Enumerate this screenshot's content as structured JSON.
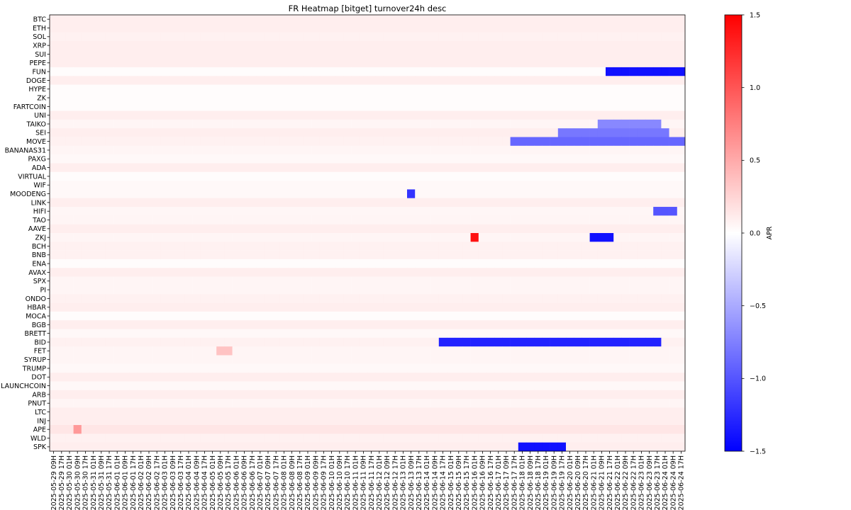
{
  "chart_data": {
    "type": "heatmap",
    "title": "FR Heatmap [bitget] turnover24h desc",
    "colorbar_label": "APR",
    "colormap": "bwr",
    "vmin": -1.5,
    "vmax": 1.5,
    "colorbar_ticks": [
      "1.5",
      "1.0",
      "0.5",
      "0.0",
      "−0.5",
      "−1.0",
      "−1.5"
    ],
    "colorbar_tick_values": [
      1.5,
      1.0,
      0.5,
      0.0,
      -0.5,
      -1.0,
      -1.5
    ],
    "rows": [
      "BTC",
      "ETH",
      "SOL",
      "XRP",
      "SUI",
      "PEPE",
      "FUN",
      "DOGE",
      "HYPE",
      "ZK",
      "FARTCOIN",
      "UNI",
      "TAIKO",
      "SEI",
      "MOVE",
      "BANANAS31",
      "PAXG",
      "ADA",
      "VIRTUAL",
      "WIF",
      "MOODENG",
      "LINK",
      "HIFI",
      "TAO",
      "AAVE",
      "ZKJ",
      "BCH",
      "BNB",
      "ENA",
      "AVAX",
      "SPX",
      "PI",
      "ONDO",
      "HBAR",
      "MOCA",
      "BGB",
      "BRETT",
      "BID",
      "FET",
      "SYRUP",
      "TRUMP",
      "DOT",
      "LAUNCHCOIN",
      "ARB",
      "PNUT",
      "LTC",
      "INJ",
      "APE",
      "WLD",
      "SPK"
    ],
    "x_start": "2025-05-29 09H",
    "x_end": "2025-06-24 17H",
    "x_step_hours": 8,
    "x_label_every": 1,
    "base_values": [
      0.1,
      0.1,
      0.08,
      0.1,
      0.1,
      0.1,
      0.02,
      0.1,
      0.02,
      0.02,
      0.02,
      0.1,
      0.06,
      0.1,
      0.08,
      0.06,
      0.04,
      0.1,
      0.02,
      0.04,
      0.04,
      0.1,
      0.05,
      0.06,
      0.1,
      0.06,
      0.08,
      0.08,
      0.02,
      0.1,
      0.06,
      0.06,
      0.08,
      0.1,
      0.02,
      0.1,
      0.04,
      0.08,
      0.06,
      0.06,
      0.04,
      0.1,
      0.04,
      0.1,
      0.06,
      0.1,
      0.1,
      0.15,
      0.08,
      0.1
    ],
    "notable_cells": [
      {
        "row": "FUN",
        "from": "2025-06-21 17H",
        "to": "2025-06-24 17H",
        "value": -1.4
      },
      {
        "row": "MOVE",
        "from": "2025-06-17 17H",
        "to": "2025-06-24 17H",
        "value": -0.9
      },
      {
        "row": "SEI",
        "from": "2025-06-19 17H",
        "to": "2025-06-24 01H",
        "value": -0.8
      },
      {
        "row": "TAIKO",
        "from": "2025-06-21 09H",
        "to": "2025-06-23 17H",
        "value": -0.7
      },
      {
        "row": "BID",
        "from": "2025-06-14 17H",
        "to": "2025-06-23 17H",
        "value": -1.3
      },
      {
        "row": "SPK",
        "from": "2025-06-18 01H",
        "to": "2025-06-19 17H",
        "value": -1.4
      },
      {
        "row": "ZKJ",
        "from": "2025-06-16 01H",
        "to": "2025-06-16 01H",
        "value": 1.4
      },
      {
        "row": "ZKJ",
        "from": "2025-06-21 01H",
        "to": "2025-06-21 17H",
        "value": -1.4
      },
      {
        "row": "MOODENG",
        "from": "2025-06-13 09H",
        "to": "2025-06-13 09H",
        "value": -1.2
      },
      {
        "row": "HIFI",
        "from": "2025-06-23 17H",
        "to": "2025-06-24 09H",
        "value": -1.0
      },
      {
        "row": "APE",
        "from": "2025-05-30 09H",
        "to": "2025-05-30 09H",
        "value": 0.6
      },
      {
        "row": "FET",
        "from": "2025-06-05 09H",
        "to": "2025-06-05 17H",
        "value": 0.35
      }
    ]
  }
}
